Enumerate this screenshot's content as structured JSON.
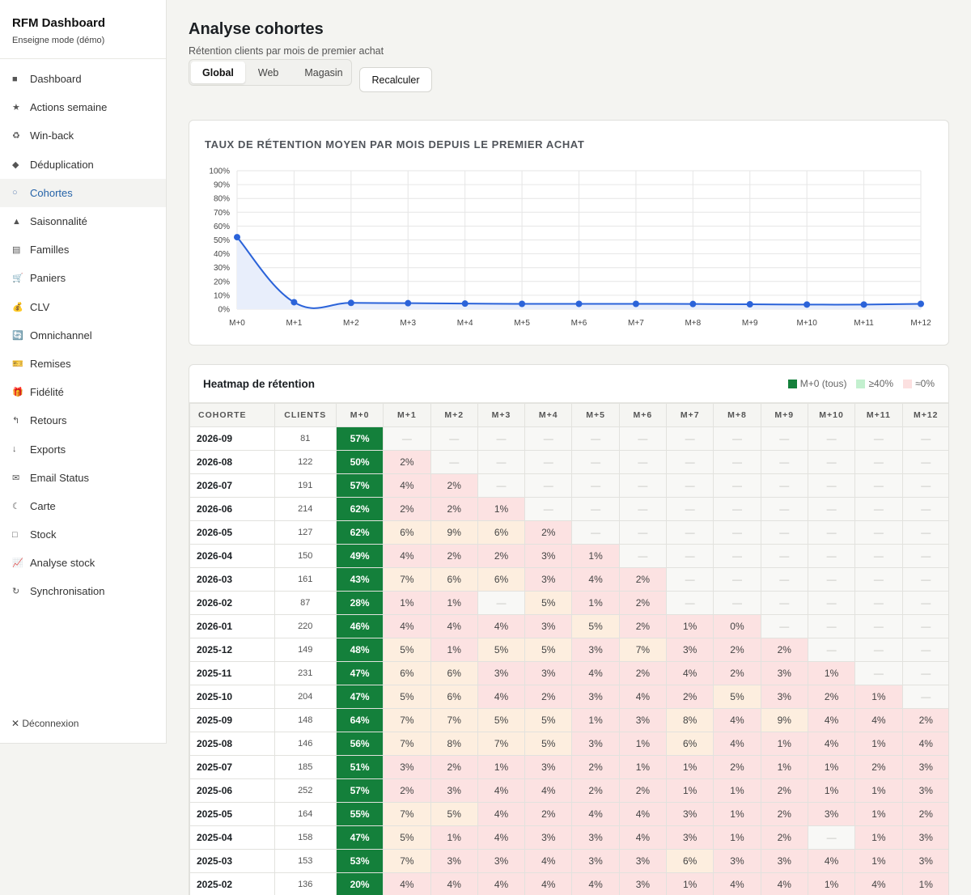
{
  "brand": {
    "title": "RFM Dashboard",
    "subtitle": "Enseigne mode (démo)"
  },
  "nav": [
    {
      "icon": "■",
      "icon_name": "square-icon",
      "label": "Dashboard",
      "active": false
    },
    {
      "icon": "★",
      "icon_name": "star-icon",
      "label": "Actions semaine",
      "active": false
    },
    {
      "icon": "♻",
      "icon_name": "recycle-icon",
      "label": "Win-back",
      "active": false
    },
    {
      "icon": "◆",
      "icon_name": "diamond-icon",
      "label": "Déduplication",
      "active": false
    },
    {
      "icon": "○",
      "icon_name": "circle-icon",
      "label": "Cohortes",
      "active": true
    },
    {
      "icon": "▲",
      "icon_name": "triangle-icon",
      "label": "Saisonnalité",
      "active": false
    },
    {
      "icon": "▤",
      "icon_name": "list-icon",
      "label": "Familles",
      "active": false
    },
    {
      "icon": "🛒",
      "icon_name": "cart-icon",
      "label": "Paniers",
      "active": false
    },
    {
      "icon": "💰",
      "icon_name": "money-bag-icon",
      "label": "CLV",
      "active": false
    },
    {
      "icon": "🔄",
      "icon_name": "cycle-icon",
      "label": "Omnichannel",
      "active": false
    },
    {
      "icon": "🎫",
      "icon_name": "ticket-icon",
      "label": "Remises",
      "active": false
    },
    {
      "icon": "🎁",
      "icon_name": "gift-icon",
      "label": "Fidélité",
      "active": false
    },
    {
      "icon": "↰",
      "icon_name": "return-arrow-icon",
      "label": "Retours",
      "active": false
    },
    {
      "icon": "↓",
      "icon_name": "down-arrow-icon",
      "label": "Exports",
      "active": false
    },
    {
      "icon": "✉",
      "icon_name": "envelope-icon",
      "label": "Email Status",
      "active": false
    },
    {
      "icon": "☾",
      "icon_name": "moon-icon",
      "label": "Carte",
      "active": false
    },
    {
      "icon": "□",
      "icon_name": "box-icon",
      "label": "Stock",
      "active": false
    },
    {
      "icon": "📈",
      "icon_name": "chart-up-icon",
      "label": "Analyse stock",
      "active": false
    },
    {
      "icon": "↻",
      "icon_name": "sync-icon",
      "label": "Synchronisation",
      "active": false
    }
  ],
  "logout": "✕ Déconnexion",
  "header": {
    "title": "Analyse cohortes",
    "subtitle": "Rétention clients par mois de premier achat"
  },
  "tabs": [
    {
      "label": "Global",
      "active": true
    },
    {
      "label": "Web",
      "active": false
    },
    {
      "label": "Magasin",
      "active": false
    }
  ],
  "recalc_label": "Recalculer",
  "chart_data": {
    "type": "line",
    "title": "TAUX DE RÉTENTION MOYEN PAR MOIS DEPUIS LE PREMIER ACHAT",
    "x": [
      "M+0",
      "M+1",
      "M+2",
      "M+3",
      "M+4",
      "M+5",
      "M+6",
      "M+7",
      "M+8",
      "M+9",
      "M+10",
      "M+11",
      "M+12"
    ],
    "values": [
      52,
      5,
      4.5,
      4.3,
      4,
      3.8,
      3.8,
      3.8,
      3.7,
      3.5,
      3.3,
      3.3,
      3.8
    ],
    "yticks": [
      "0%",
      "10%",
      "20%",
      "30%",
      "40%",
      "50%",
      "60%",
      "70%",
      "80%",
      "90%",
      "100%"
    ],
    "ylim": [
      0,
      100
    ],
    "grid": true,
    "line_color": "#2b63d9",
    "fill_color": "#e8eefb"
  },
  "heatmap": {
    "title": "Heatmap de rétention",
    "legend": [
      {
        "label": "M+0 (tous)",
        "color": "#14803b"
      },
      {
        "label": "≥40%",
        "color": "#c3f0cf"
      },
      {
        "label": "≈0%",
        "color": "#fce0e0"
      }
    ],
    "columns": [
      "COHORTE",
      "CLIENTS",
      "M+0",
      "M+1",
      "M+2",
      "M+3",
      "M+4",
      "M+5",
      "M+6",
      "M+7",
      "M+8",
      "M+9",
      "M+10",
      "M+11",
      "M+12"
    ],
    "rows": [
      {
        "cohort": "2026-09",
        "clients": "81",
        "cells": [
          "57%",
          "—",
          "—",
          "—",
          "—",
          "—",
          "—",
          "—",
          "—",
          "—",
          "—",
          "—",
          "—"
        ]
      },
      {
        "cohort": "2026-08",
        "clients": "122",
        "cells": [
          "50%",
          "2%",
          "—",
          "—",
          "—",
          "—",
          "—",
          "—",
          "—",
          "—",
          "—",
          "—",
          "—"
        ]
      },
      {
        "cohort": "2026-07",
        "clients": "191",
        "cells": [
          "57%",
          "4%",
          "2%",
          "—",
          "—",
          "—",
          "—",
          "—",
          "—",
          "—",
          "—",
          "—",
          "—"
        ]
      },
      {
        "cohort": "2026-06",
        "clients": "214",
        "cells": [
          "62%",
          "2%",
          "2%",
          "1%",
          "—",
          "—",
          "—",
          "—",
          "—",
          "—",
          "—",
          "—",
          "—"
        ]
      },
      {
        "cohort": "2026-05",
        "clients": "127",
        "cells": [
          "62%",
          "6%",
          "9%",
          "6%",
          "2%",
          "—",
          "—",
          "—",
          "—",
          "—",
          "—",
          "—",
          "—"
        ]
      },
      {
        "cohort": "2026-04",
        "clients": "150",
        "cells": [
          "49%",
          "4%",
          "2%",
          "2%",
          "3%",
          "1%",
          "—",
          "—",
          "—",
          "—",
          "—",
          "—",
          "—"
        ]
      },
      {
        "cohort": "2026-03",
        "clients": "161",
        "cells": [
          "43%",
          "7%",
          "6%",
          "6%",
          "3%",
          "4%",
          "2%",
          "—",
          "—",
          "—",
          "—",
          "—",
          "—"
        ]
      },
      {
        "cohort": "2026-02",
        "clients": "87",
        "cells": [
          "28%",
          "1%",
          "1%",
          "—",
          "5%",
          "1%",
          "2%",
          "—",
          "—",
          "—",
          "—",
          "—",
          "—"
        ]
      },
      {
        "cohort": "2026-01",
        "clients": "220",
        "cells": [
          "46%",
          "4%",
          "4%",
          "4%",
          "3%",
          "5%",
          "2%",
          "1%",
          "0%",
          "—",
          "—",
          "—",
          "—"
        ]
      },
      {
        "cohort": "2025-12",
        "clients": "149",
        "cells": [
          "48%",
          "5%",
          "1%",
          "5%",
          "5%",
          "3%",
          "7%",
          "3%",
          "2%",
          "2%",
          "—",
          "—",
          "—"
        ]
      },
      {
        "cohort": "2025-11",
        "clients": "231",
        "cells": [
          "47%",
          "6%",
          "6%",
          "3%",
          "3%",
          "4%",
          "2%",
          "4%",
          "2%",
          "3%",
          "1%",
          "—",
          "—"
        ]
      },
      {
        "cohort": "2025-10",
        "clients": "204",
        "cells": [
          "47%",
          "5%",
          "6%",
          "4%",
          "2%",
          "3%",
          "4%",
          "2%",
          "5%",
          "3%",
          "2%",
          "1%",
          "—"
        ]
      },
      {
        "cohort": "2025-09",
        "clients": "148",
        "cells": [
          "64%",
          "7%",
          "7%",
          "5%",
          "5%",
          "1%",
          "3%",
          "8%",
          "4%",
          "9%",
          "4%",
          "4%",
          "2%"
        ]
      },
      {
        "cohort": "2025-08",
        "clients": "146",
        "cells": [
          "56%",
          "7%",
          "8%",
          "7%",
          "5%",
          "3%",
          "1%",
          "6%",
          "4%",
          "1%",
          "4%",
          "1%",
          "4%"
        ]
      },
      {
        "cohort": "2025-07",
        "clients": "185",
        "cells": [
          "51%",
          "3%",
          "2%",
          "1%",
          "3%",
          "2%",
          "1%",
          "1%",
          "2%",
          "1%",
          "1%",
          "2%",
          "3%"
        ]
      },
      {
        "cohort": "2025-06",
        "clients": "252",
        "cells": [
          "57%",
          "2%",
          "3%",
          "4%",
          "4%",
          "2%",
          "2%",
          "1%",
          "1%",
          "2%",
          "1%",
          "1%",
          "3%"
        ]
      },
      {
        "cohort": "2025-05",
        "clients": "164",
        "cells": [
          "55%",
          "7%",
          "5%",
          "4%",
          "2%",
          "4%",
          "4%",
          "3%",
          "1%",
          "2%",
          "3%",
          "1%",
          "2%"
        ]
      },
      {
        "cohort": "2025-04",
        "clients": "158",
        "cells": [
          "47%",
          "5%",
          "1%",
          "4%",
          "3%",
          "3%",
          "4%",
          "3%",
          "1%",
          "2%",
          "—",
          "1%",
          "3%"
        ]
      },
      {
        "cohort": "2025-03",
        "clients": "153",
        "cells": [
          "53%",
          "7%",
          "3%",
          "3%",
          "4%",
          "3%",
          "3%",
          "6%",
          "3%",
          "3%",
          "4%",
          "1%",
          "3%"
        ]
      },
      {
        "cohort": "2025-02",
        "clients": "136",
        "cells": [
          "20%",
          "4%",
          "4%",
          "4%",
          "4%",
          "4%",
          "3%",
          "1%",
          "4%",
          "4%",
          "1%",
          "4%",
          "1%"
        ]
      }
    ]
  }
}
